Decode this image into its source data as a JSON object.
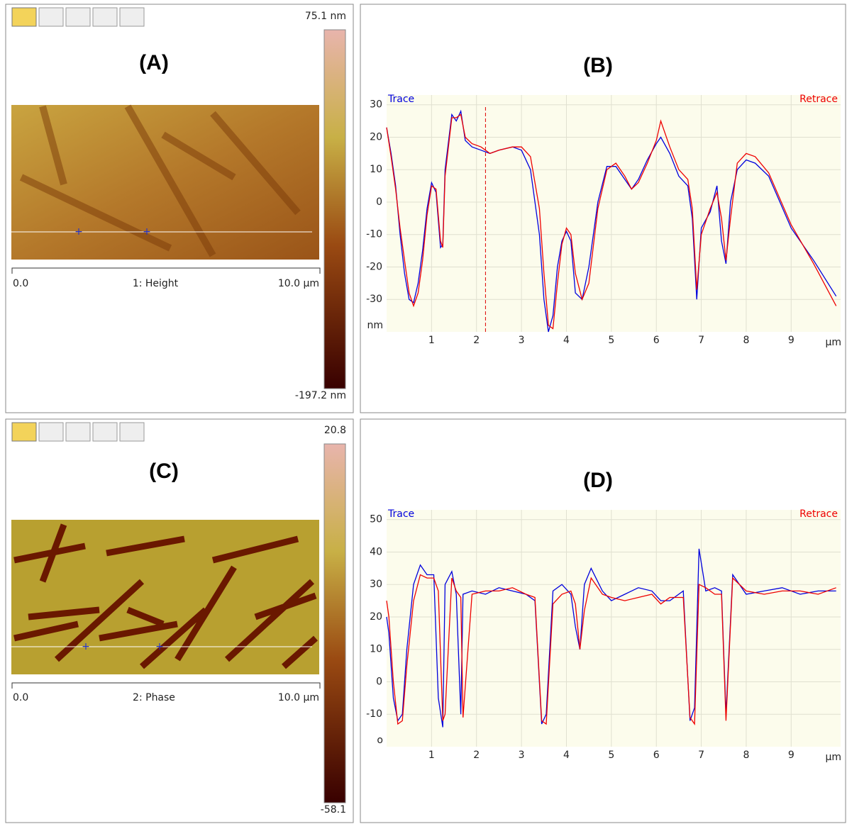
{
  "image_panels": [
    {
      "label": "(A)",
      "colorbar_max": "75.1 nm",
      "colorbar_min": "-197.2 nm",
      "scale_start": "0.0",
      "channel": "1: Height",
      "scale_end": "10.0 µm"
    },
    {
      "label": "(C)",
      "colorbar_max": "20.8",
      "colorbar_min": "-58.1",
      "scale_start": "0.0",
      "channel": "2: Phase",
      "scale_end": "10.0 µm"
    }
  ],
  "chart_data": [
    {
      "type": "line",
      "title": "(B)",
      "x_unit": "µm",
      "y_unit": "nm",
      "xlim": [
        0,
        10.1
      ],
      "ylim": [
        -40,
        33
      ],
      "xticks": [
        1,
        2,
        3,
        4,
        5,
        6,
        7,
        8,
        9
      ],
      "yticks": [
        -30,
        -20,
        -10,
        0,
        10,
        20,
        30
      ],
      "grid": true,
      "cursor_x": 2.2,
      "x": [
        0,
        0.1,
        0.2,
        0.3,
        0.4,
        0.5,
        0.6,
        0.7,
        0.8,
        0.9,
        1.0,
        1.1,
        1.2,
        1.25,
        1.3,
        1.45,
        1.55,
        1.65,
        1.75,
        1.9,
        2.1,
        2.3,
        2.5,
        2.8,
        3.0,
        3.2,
        3.4,
        3.5,
        3.6,
        3.7,
        3.8,
        3.9,
        4.0,
        4.1,
        4.2,
        4.35,
        4.5,
        4.7,
        4.9,
        5.1,
        5.3,
        5.45,
        5.6,
        5.8,
        6.0,
        6.1,
        6.3,
        6.5,
        6.7,
        6.8,
        6.9,
        7.0,
        7.2,
        7.35,
        7.45,
        7.55,
        7.65,
        7.8,
        8.0,
        8.2,
        8.5,
        9.0,
        9.5,
        10.0
      ],
      "series": [
        {
          "name": "Trace",
          "color": "#0000dd",
          "values": [
            23,
            15,
            5,
            -10,
            -22,
            -30,
            -31,
            -25,
            -15,
            -2,
            6,
            3,
            -14,
            -13,
            10,
            27,
            25,
            28,
            19,
            17,
            16,
            15,
            16,
            17,
            16,
            10,
            -10,
            -30,
            -40,
            -35,
            -20,
            -12,
            -9,
            -12,
            -28,
            -30,
            -20,
            0,
            11,
            11,
            7,
            4,
            7,
            13,
            18,
            20,
            15,
            8,
            5,
            -5,
            -30,
            -8,
            -3,
            5,
            -12,
            -19,
            0,
            10,
            13,
            12,
            8,
            -8,
            -18,
            -29
          ]
        },
        {
          "name": "Retrace",
          "color": "#ee0000",
          "values": [
            23,
            14,
            4,
            -8,
            -18,
            -28,
            -32,
            -28,
            -18,
            -4,
            5,
            4,
            -12,
            -14,
            8,
            26,
            26,
            27,
            20,
            18,
            17,
            15,
            16,
            17,
            17,
            14,
            -2,
            -22,
            -38,
            -39,
            -25,
            -13,
            -8,
            -10,
            -22,
            -30,
            -25,
            -2,
            10,
            12,
            8,
            4,
            6,
            12,
            19,
            25,
            17,
            10,
            7,
            -2,
            -27,
            -10,
            -2,
            3,
            -5,
            -18,
            -5,
            12,
            15,
            14,
            9,
            -7,
            -19,
            -32
          ]
        }
      ]
    },
    {
      "type": "line",
      "title": "(D)",
      "x_unit": "µm",
      "y_unit": "o",
      "xlim": [
        0,
        10.1
      ],
      "ylim": [
        -20,
        53
      ],
      "xticks": [
        1,
        2,
        3,
        4,
        5,
        6,
        7,
        8,
        9
      ],
      "yticks": [
        -10,
        0,
        10,
        20,
        30,
        40,
        50
      ],
      "grid": true,
      "x": [
        0,
        0.05,
        0.15,
        0.25,
        0.35,
        0.45,
        0.6,
        0.75,
        0.9,
        1.05,
        1.15,
        1.25,
        1.3,
        1.45,
        1.55,
        1.65,
        1.7,
        1.9,
        2.2,
        2.5,
        2.8,
        3.1,
        3.3,
        3.45,
        3.55,
        3.7,
        3.9,
        4.1,
        4.2,
        4.3,
        4.4,
        4.55,
        4.8,
        5.0,
        5.3,
        5.6,
        5.9,
        6.1,
        6.3,
        6.6,
        6.75,
        6.85,
        6.95,
        7.1,
        7.3,
        7.45,
        7.55,
        7.7,
        8.0,
        8.4,
        8.8,
        9.2,
        9.6,
        10.0
      ],
      "series": [
        {
          "name": "Trace",
          "color": "#0000dd",
          "values": [
            20,
            15,
            -5,
            -12,
            -10,
            10,
            30,
            36,
            33,
            33,
            -5,
            -14,
            30,
            34,
            27,
            -10,
            27,
            28,
            27,
            29,
            28,
            27,
            25,
            -13,
            -10,
            28,
            30,
            27,
            17,
            10,
            30,
            35,
            28,
            25,
            27,
            29,
            28,
            25,
            25,
            28,
            -12,
            -8,
            41,
            28,
            29,
            28,
            -10,
            33,
            27,
            28,
            29,
            27,
            28,
            28
          ]
        },
        {
          "name": "Retrace",
          "color": "#ee0000",
          "values": [
            25,
            20,
            0,
            -13,
            -12,
            5,
            25,
            33,
            32,
            32,
            28,
            -12,
            -10,
            32,
            28,
            26,
            -11,
            27,
            28,
            28,
            29,
            27,
            26,
            -12,
            -13,
            24,
            27,
            28,
            24,
            10,
            22,
            32,
            27,
            26,
            25,
            26,
            27,
            24,
            26,
            26,
            -11,
            -13,
            30,
            29,
            27,
            27,
            -12,
            32,
            28,
            27,
            28,
            28,
            27,
            29
          ]
        }
      ]
    }
  ]
}
